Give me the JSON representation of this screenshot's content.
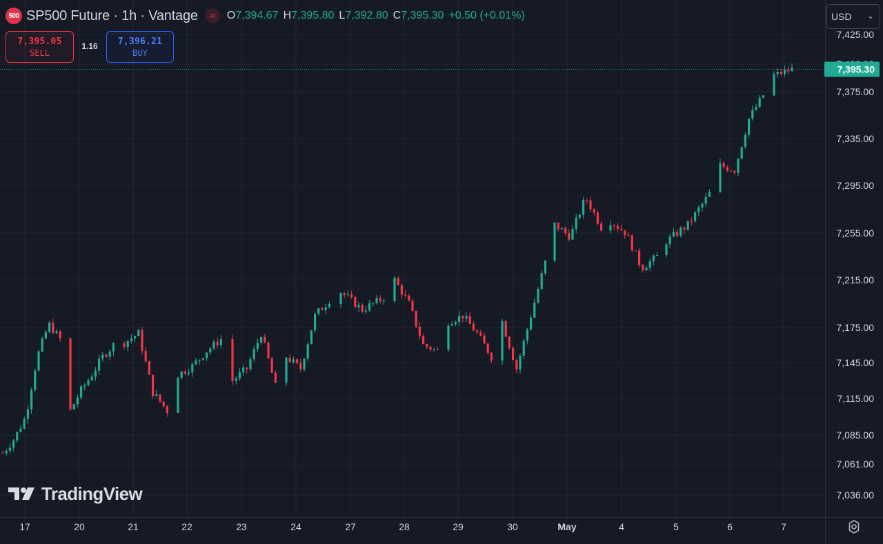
{
  "header": {
    "symbol_badge": "500",
    "title": "SP500 Future · 1h · Vantage",
    "vote_icon": "wave-icon",
    "ohlc": [
      {
        "key": "O",
        "value": "7,394.67"
      },
      {
        "key": "H",
        "value": "7,395.80"
      },
      {
        "key": "L",
        "value": "7,392.80"
      },
      {
        "key": "C",
        "value": "7,395.30"
      }
    ],
    "change": "+0.50 (+0.01%)"
  },
  "trade": {
    "sell_price": "7,395.05",
    "sell_label": "SELL",
    "spread": "1.16",
    "buy_price": "7,396.21",
    "buy_label": "BUY"
  },
  "currency": {
    "label": "USD",
    "icon": "chevron-down-icon"
  },
  "logo": {
    "text": "TradingView"
  },
  "settings_icon": "gear-icon",
  "colors": {
    "background": "#161a25",
    "up": "#22ab94",
    "down": "#f23645",
    "grid": "#232632",
    "text": "#d1d4dc",
    "price_line": "#22ab94"
  },
  "chart_data": {
    "type": "candlestick",
    "title": "SP500 Future · 1h · Vantage",
    "interval": "1h",
    "grid": true,
    "y_scale": "non-linear (stretched at top)",
    "yticks": [
      {
        "value": 7425,
        "label": "7,425.00"
      },
      {
        "value": 7400,
        "label": "7,400.00"
      },
      {
        "value": 7375,
        "label": "7,375.00"
      },
      {
        "value": 7335,
        "label": "7,335.00"
      },
      {
        "value": 7295,
        "label": "7,295.00"
      },
      {
        "value": 7255,
        "label": "7,255.00"
      },
      {
        "value": 7215,
        "label": "7,215.00"
      },
      {
        "value": 7175,
        "label": "7,175.00"
      },
      {
        "value": 7145,
        "label": "7,145.00"
      },
      {
        "value": 7115,
        "label": "7,115.00"
      },
      {
        "value": 7085,
        "label": "7,085.00"
      },
      {
        "value": 7061,
        "label": "7,061.00"
      },
      {
        "value": 7036,
        "label": "7,036.00"
      }
    ],
    "x_labels": [
      "17",
      "20",
      "21",
      "22",
      "23",
      "24",
      "27",
      "28",
      "29",
      "30",
      "May",
      "4",
      "5",
      "6",
      "7"
    ],
    "last_price": {
      "value": 7395.3,
      "label": "7,395.30"
    },
    "close_path": [
      {
        "date": "17",
        "close": 7070
      },
      {
        "date": "17",
        "close": 7082
      },
      {
        "date": "17",
        "close": 7100
      },
      {
        "date": "17",
        "close": 7150
      },
      {
        "date": "17",
        "close": 7178
      },
      {
        "date": "17",
        "close": 7165
      },
      {
        "date": "20",
        "close": 7105
      },
      {
        "date": "20",
        "close": 7122
      },
      {
        "date": "20",
        "close": 7135
      },
      {
        "date": "20",
        "close": 7150
      },
      {
        "date": "20",
        "close": 7160
      },
      {
        "date": "21",
        "close": 7162
      },
      {
        "date": "21",
        "close": 7170
      },
      {
        "date": "21",
        "close": 7120
      },
      {
        "date": "21",
        "close": 7105
      },
      {
        "date": "22",
        "close": 7135
      },
      {
        "date": "22",
        "close": 7142
      },
      {
        "date": "22",
        "close": 7155
      },
      {
        "date": "22",
        "close": 7165
      },
      {
        "date": "23",
        "close": 7130
      },
      {
        "date": "23",
        "close": 7140
      },
      {
        "date": "23",
        "close": 7170
      },
      {
        "date": "23",
        "close": 7125
      },
      {
        "date": "24",
        "close": 7150
      },
      {
        "date": "24",
        "close": 7140
      },
      {
        "date": "24",
        "close": 7185
      },
      {
        "date": "24",
        "close": 7198
      },
      {
        "date": "27",
        "close": 7205
      },
      {
        "date": "27",
        "close": 7190
      },
      {
        "date": "27",
        "close": 7200
      },
      {
        "date": "28",
        "close": 7215
      },
      {
        "date": "28",
        "close": 7195
      },
      {
        "date": "28",
        "close": 7160
      },
      {
        "date": "28",
        "close": 7155
      },
      {
        "date": "29",
        "close": 7180
      },
      {
        "date": "29",
        "close": 7185
      },
      {
        "date": "29",
        "close": 7170
      },
      {
        "date": "29",
        "close": 7150
      },
      {
        "date": "30",
        "close": 7180
      },
      {
        "date": "30",
        "close": 7140
      },
      {
        "date": "30",
        "close": 7185
      },
      {
        "date": "30",
        "close": 7230
      },
      {
        "date": "May",
        "close": 7262
      },
      {
        "date": "May",
        "close": 7252
      },
      {
        "date": "May",
        "close": 7285
      },
      {
        "date": "May",
        "close": 7260
      },
      {
        "date": "4",
        "close": 7265
      },
      {
        "date": "4",
        "close": 7255
      },
      {
        "date": "4",
        "close": 7225
      },
      {
        "date": "4",
        "close": 7235
      },
      {
        "date": "5",
        "close": 7248
      },
      {
        "date": "5",
        "close": 7262
      },
      {
        "date": "5",
        "close": 7288
      },
      {
        "date": "6",
        "close": 7312
      },
      {
        "date": "6",
        "close": 7308
      },
      {
        "date": "6",
        "close": 7352
      },
      {
        "date": "6",
        "close": 7372
      },
      {
        "date": "7",
        "close": 7390
      },
      {
        "date": "7",
        "close": 7395.3
      }
    ]
  }
}
